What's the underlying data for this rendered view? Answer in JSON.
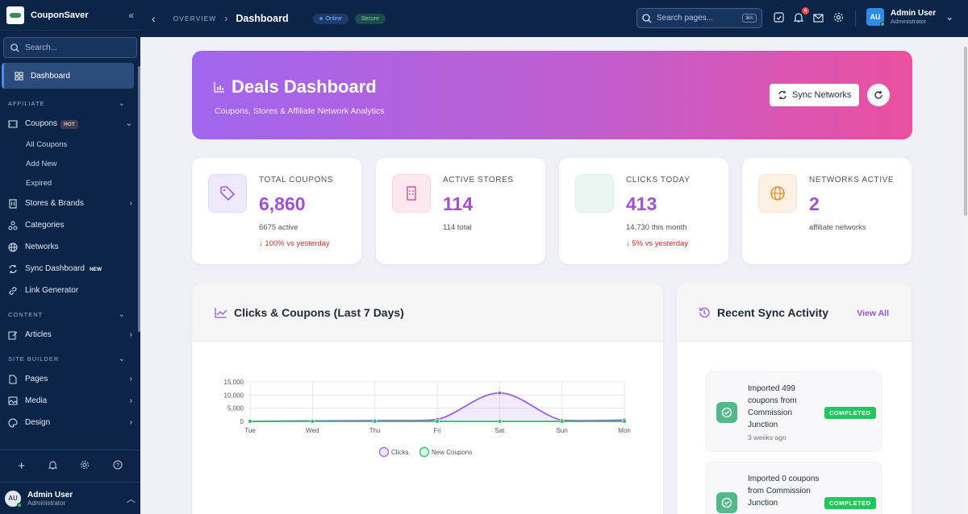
{
  "app": {
    "name": "CouponSaver"
  },
  "sidebar": {
    "search_placeholder": "Search...",
    "dashboard_label": "Dashboard",
    "sections": {
      "affiliate": "AFFILIATE",
      "content": "CONTENT",
      "site_builder": "SITE BUILDER"
    },
    "coupons": {
      "label": "Coupons",
      "badge": "HOT",
      "sub": [
        "All Coupons",
        "Add New",
        "Expired"
      ]
    },
    "items": {
      "stores": "Stores & Brands",
      "categories": "Categories",
      "networks": "Networks",
      "sync": "Sync Dashboard",
      "sync_badge": "NEW",
      "link": "Link Generator",
      "articles": "Articles",
      "pages": "Pages",
      "media": "Media",
      "design": "Design"
    },
    "user": {
      "initials": "AU",
      "name": "Admin User",
      "role": "Administrator"
    }
  },
  "topbar": {
    "breadcrumb_root": "OVERVIEW",
    "breadcrumb_current": "Dashboard",
    "status_online": "Online",
    "status_secure": "Secure",
    "search_placeholder": "Search pages...",
    "search_shortcut": "⌘K",
    "notification_count": "6",
    "user": {
      "initials": "AU",
      "name": "Admin User",
      "role": "Administrator"
    }
  },
  "hero": {
    "title": "Deals Dashboard",
    "subtitle": "Coupons, Stores & Affiliate Network Analytics",
    "sync_button": "Sync Networks"
  },
  "stats": [
    {
      "label": "TOTAL COUPONS",
      "value": "6,860",
      "sub": "6675 active",
      "trend": "↓ 100% vs yesterday",
      "icon": "tag-icon"
    },
    {
      "label": "ACTIVE STORES",
      "value": "114",
      "sub": "114 total",
      "trend": "",
      "icon": "building-icon"
    },
    {
      "label": "CLICKS TODAY",
      "value": "413",
      "sub": "14,730 this month",
      "trend": "↓ 5% vs yesterday",
      "icon": ""
    },
    {
      "label": "NETWORKS ACTIVE",
      "value": "2",
      "sub": "affiliate networks",
      "trend": "",
      "icon": "globe-icon"
    }
  ],
  "chart_panel": {
    "title": "Clicks & Coupons (Last 7 Days)"
  },
  "activity_panel": {
    "title": "Recent Sync Activity",
    "view_all": "View All",
    "items": [
      {
        "text": "Imported 499 coupons from Commission Junction",
        "time": "3 weeks ago",
        "status": "COMPLETED"
      },
      {
        "text": "Imported 0 coupons from Commission Junction",
        "time": "",
        "status": "COMPLETED"
      }
    ]
  },
  "colors": {
    "clicks": "#9b5de5",
    "coupons": "#22c55e",
    "accent": "#a24fd6"
  },
  "chart_data": {
    "type": "line",
    "categories": [
      "Tue",
      "Wed",
      "Thu",
      "Fri",
      "Sat",
      "Sun",
      "Mon"
    ],
    "series": [
      {
        "name": "Clicks",
        "values": [
          0,
          200,
          300,
          700,
          10800,
          400,
          500
        ]
      },
      {
        "name": "New Coupons",
        "values": [
          0,
          0,
          0,
          0,
          0,
          0,
          0
        ]
      }
    ],
    "yticks": [
      "15,000",
      "10,000",
      "5,000",
      "0"
    ],
    "ylim": [
      0,
      15000
    ],
    "legend_position": "bottom",
    "grid": true
  }
}
